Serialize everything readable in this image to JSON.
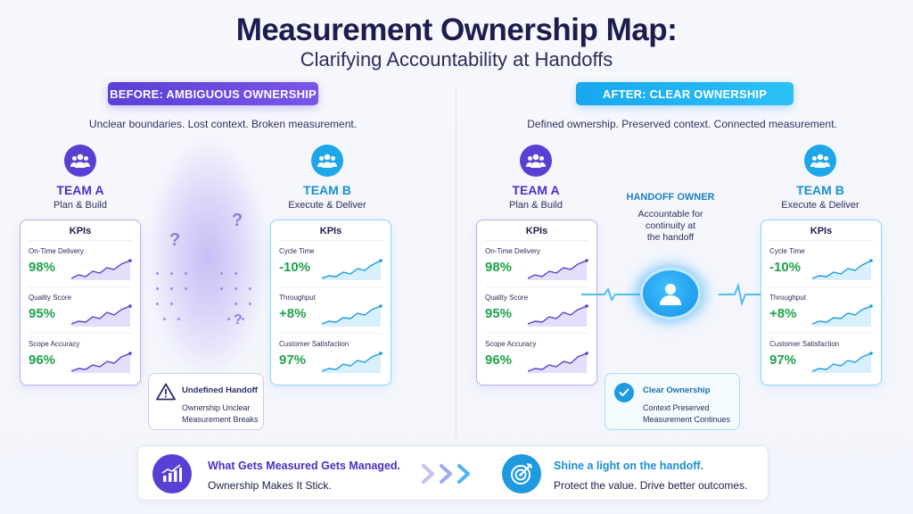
{
  "title": "Measurement Ownership Map:",
  "subtitle": "Clarifying Accountability at Handoffs",
  "before": {
    "badge": "BEFORE: AMBIGUOUS OWNERSHIP",
    "description": "Unclear boundaries. Lost context. Broken measurement.",
    "callout": {
      "title": "Undefined Handoff",
      "line1": "Ownership Unclear",
      "line2": "Measurement Breaks"
    }
  },
  "after": {
    "badge": "AFTER: CLEAR OWNERSHIP",
    "description": "Defined ownership. Preserved context. Connected measurement.",
    "owner": {
      "label": "HANDOFF OWNER",
      "line1": "Accountable for",
      "line2": "continuity at",
      "line3": "the handoff"
    },
    "callout": {
      "title": "Clear Ownership",
      "line1": "Context Preserved",
      "line2": "Measurement Continues"
    }
  },
  "team_a": {
    "name": "TEAM A",
    "role": "Plan & Build",
    "kpi_header": "KPIs",
    "kpis": [
      {
        "label": "On-Time Delivery",
        "value": "98%"
      },
      {
        "label": "Quality Score",
        "value": "95%"
      },
      {
        "label": "Scope Accuracy",
        "value": "96%"
      }
    ]
  },
  "team_b": {
    "name": "TEAM B",
    "role": "Execute & Deliver",
    "kpi_header": "KPIs",
    "kpis": [
      {
        "label": "Cycle Time",
        "value": "-10%"
      },
      {
        "label": "Throughput",
        "value": "+8%"
      },
      {
        "label": "Customer Satisfaction",
        "value": "97%"
      }
    ]
  },
  "footer": {
    "left_title": "What Gets Measured Gets Managed.",
    "left_sub": "Ownership Makes It Stick.",
    "right_title": "Shine a light on the handoff.",
    "right_sub": "Protect the value. Drive better outcomes."
  },
  "colors": {
    "purple": "#5a3fd4",
    "blue": "#1ea6ea",
    "green": "#1fa24a",
    "navy": "#1a1d4e"
  },
  "icons": [
    "team-icon",
    "warning-icon",
    "check-icon",
    "person-icon",
    "growth-chart-icon",
    "target-icon",
    "arrows-icon"
  ]
}
